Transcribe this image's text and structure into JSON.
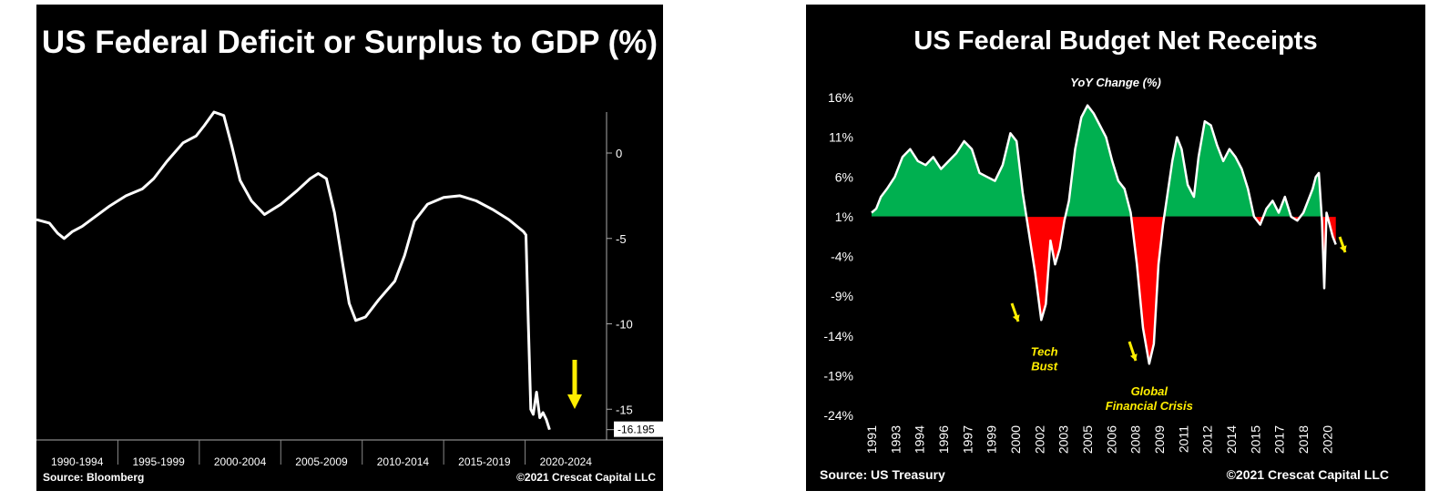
{
  "chart_data": [
    {
      "type": "line",
      "title": "US Federal Deficit or Surplus to GDP (%)",
      "source": "Source: Bloomberg",
      "copyright": "©2021 Crescat Capital LLC",
      "x_tick_labels": [
        "1990-1994",
        "1995-1999",
        "2000-2004",
        "2005-2009",
        "2010-2014",
        "2015-2019",
        "2020-2024"
      ],
      "y_ticks": [
        0,
        -5,
        -10,
        -15
      ],
      "ylim": [
        -16.8,
        2.4
      ],
      "xlim": [
        1990,
        2025
      ],
      "last_value_label": "-16.195",
      "line_color": "#ffffff",
      "arrow_color": "#ffee00",
      "series": [
        {
          "x": [
            1990,
            1990.8,
            1991.3,
            1991.7,
            1992.2,
            1992.8,
            1993.5,
            1994.5,
            1995.5,
            1996.5,
            1997.2,
            1998.0,
            1999.0,
            1999.8,
            2000.3,
            2000.9,
            2001.5,
            2002.0,
            2002.5,
            2003.2,
            2004.0,
            2005.0,
            2006.0,
            2006.8,
            2007.3,
            2007.8,
            2008.3,
            2008.8,
            2009.2,
            2009.6,
            2010.2,
            2011.0,
            2012.0,
            2012.6,
            2013.2,
            2014.0,
            2015.0,
            2016.0,
            2017.0,
            2018.0,
            2019.0,
            2019.9,
            2020.05,
            2020.2,
            2020.35,
            2020.5,
            2020.7,
            2020.9,
            2021.1,
            2021.3,
            2021.5
          ],
          "y": [
            -3.9,
            -4.1,
            -4.7,
            -5.0,
            -4.6,
            -4.3,
            -3.8,
            -3.1,
            -2.5,
            -2.1,
            -1.5,
            -0.5,
            0.6,
            1.0,
            1.6,
            2.4,
            2.2,
            0.4,
            -1.6,
            -2.8,
            -3.6,
            -3.0,
            -2.2,
            -1.5,
            -1.2,
            -1.5,
            -3.5,
            -6.5,
            -8.8,
            -9.8,
            -9.6,
            -8.6,
            -7.5,
            -6.0,
            -4.0,
            -3.0,
            -2.6,
            -2.5,
            -2.8,
            -3.3,
            -3.9,
            -4.6,
            -4.8,
            -10.0,
            -15.0,
            -15.3,
            -14.0,
            -15.5,
            -15.2,
            -15.6,
            -16.195
          ]
        }
      ]
    },
    {
      "type": "area",
      "title": "US Federal Budget Net Receipts",
      "subtitle": "YoY Change (%)",
      "source": "Source: US Treasury",
      "copyright": "©2021 Crescat Capital LLC",
      "ylabel_ticks": [
        "16%",
        "11%",
        "6%",
        "1%",
        "-4%",
        "-9%",
        "-14%",
        "-19%",
        "-24%"
      ],
      "y_ticks": [
        16,
        11,
        6,
        1,
        -4,
        -9,
        -14,
        -19,
        -24
      ],
      "ylim": [
        -24,
        16
      ],
      "baseline": 1,
      "x_tick_labels": [
        "1991",
        "1993",
        "1994",
        "1996",
        "1997",
        "1999",
        "2000",
        "2002",
        "2003",
        "2005",
        "2006",
        "2008",
        "2009",
        "2011",
        "2012",
        "2014",
        "2015",
        "2017",
        "2018",
        "2020"
      ],
      "xlim": [
        1991,
        2021
      ],
      "positive_color": "#00b050",
      "negative_color": "#ff0000",
      "line_color": "#ffffff",
      "arrow_color": "#ffee00",
      "annotations": [
        {
          "text_lines": [
            "Tech",
            "Bust"
          ],
          "x": 2002.2,
          "y": -16.5
        },
        {
          "text_lines": [
            "Global",
            "Financial Crisis"
          ],
          "x": 2009.0,
          "y": -21.5
        }
      ],
      "series": [
        {
          "x": [
            1991.0,
            1991.3,
            1991.6,
            1992.0,
            1992.5,
            1993.0,
            1993.5,
            1994.0,
            1994.5,
            1995.0,
            1995.5,
            1996.0,
            1996.5,
            1997.0,
            1997.5,
            1998.0,
            1998.5,
            1999.0,
            1999.5,
            2000.0,
            2000.4,
            2000.8,
            2001.2,
            2001.6,
            2002.0,
            2002.3,
            2002.6,
            2002.9,
            2003.2,
            2003.5,
            2003.8,
            2004.2,
            2004.6,
            2005.0,
            2005.4,
            2005.8,
            2006.2,
            2006.6,
            2007.0,
            2007.4,
            2007.8,
            2008.2,
            2008.6,
            2009.0,
            2009.3,
            2009.6,
            2009.9,
            2010.2,
            2010.5,
            2010.8,
            2011.1,
            2011.5,
            2011.9,
            2012.2,
            2012.6,
            2013.0,
            2013.4,
            2013.8,
            2014.2,
            2014.6,
            2015.0,
            2015.4,
            2015.8,
            2016.2,
            2016.6,
            2017.0,
            2017.4,
            2017.8,
            2018.2,
            2018.6,
            2019.0,
            2019.3,
            2019.6,
            2019.8,
            2020.0,
            2020.2,
            2020.35,
            2020.5,
            2020.7,
            2020.9,
            2021.1
          ],
          "y": [
            1.5,
            2.0,
            3.5,
            4.5,
            6.0,
            8.5,
            9.5,
            8.0,
            7.5,
            8.5,
            7.0,
            8.0,
            9.0,
            10.5,
            9.5,
            6.5,
            6.0,
            5.5,
            7.5,
            11.5,
            10.5,
            4.0,
            -1.0,
            -6.0,
            -12.0,
            -10.0,
            -2.0,
            -5.0,
            -3.0,
            0.5,
            3.0,
            9.5,
            13.5,
            15.0,
            14.0,
            12.5,
            11.0,
            8.0,
            5.5,
            4.5,
            1.5,
            -5.0,
            -13.0,
            -17.5,
            -15.0,
            -5.0,
            0.0,
            4.0,
            8.0,
            11.0,
            9.5,
            5.0,
            3.5,
            8.5,
            13.0,
            12.5,
            10.0,
            8.0,
            9.5,
            8.5,
            7.0,
            4.5,
            1.0,
            0.0,
            2.0,
            3.0,
            1.5,
            3.5,
            1.0,
            0.5,
            1.5,
            3.0,
            4.5,
            6.0,
            6.5,
            0.5,
            -8.0,
            1.5,
            0.0,
            -1.5,
            -2.5
          ]
        }
      ]
    }
  ]
}
